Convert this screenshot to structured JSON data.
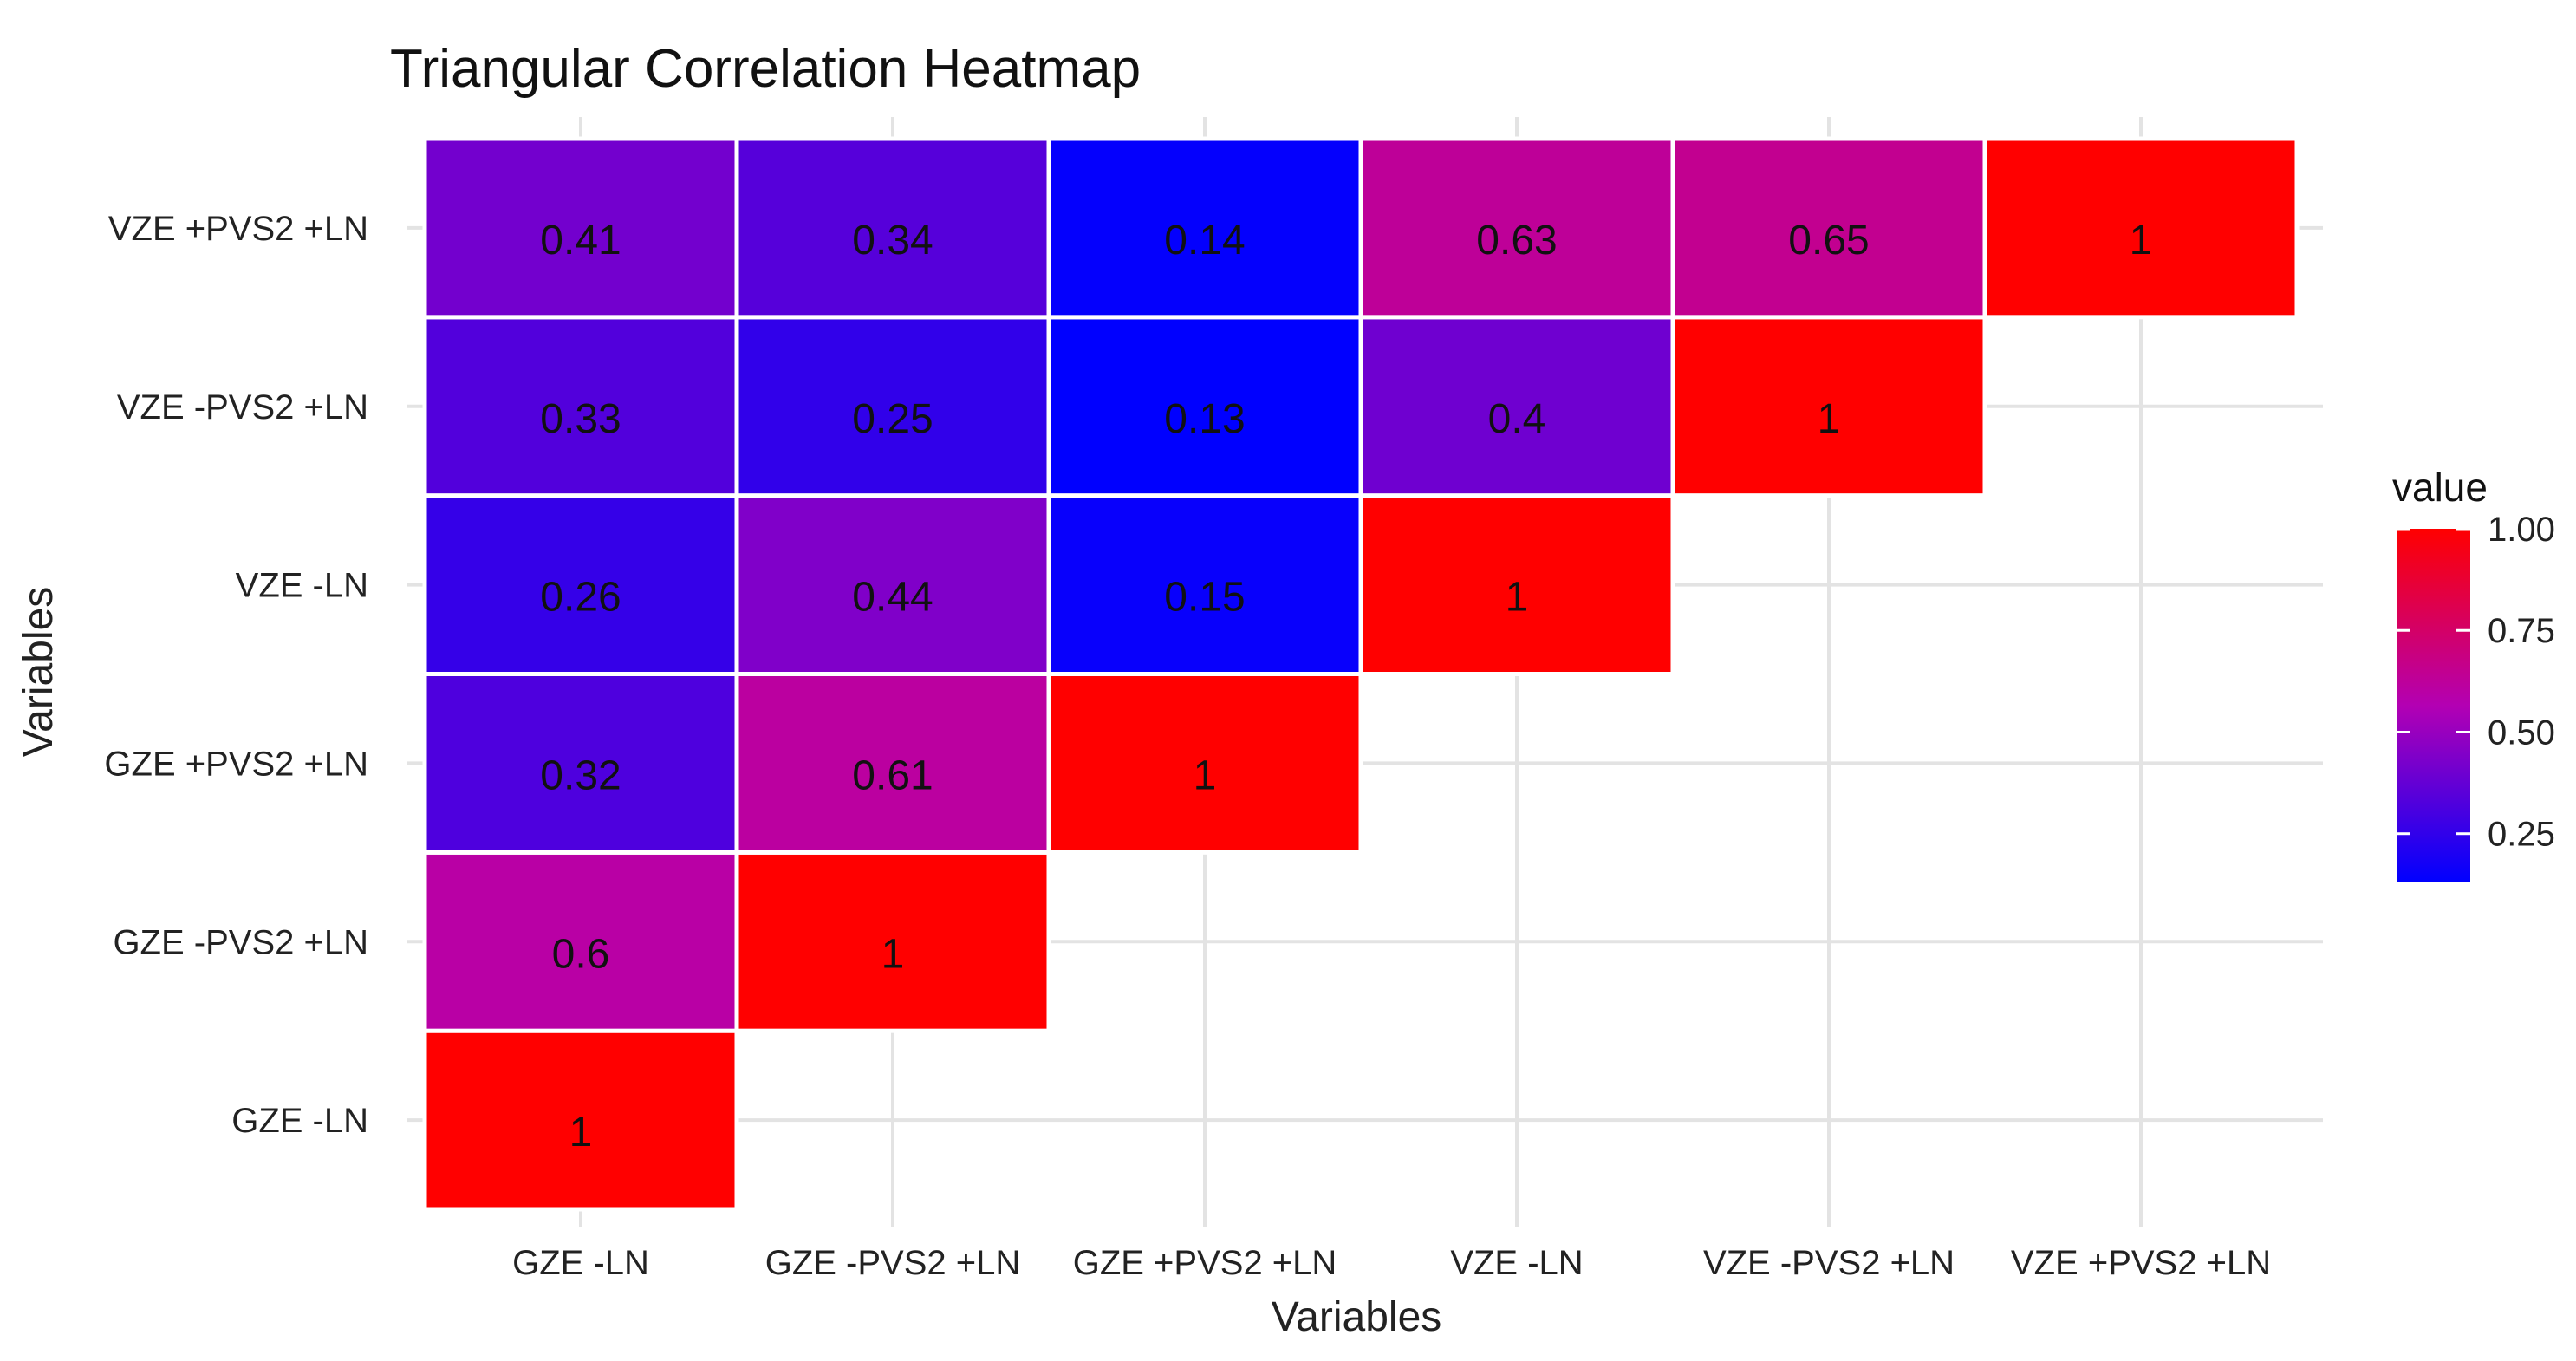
{
  "chart_data": {
    "type": "heatmap",
    "title": "Triangular Correlation Heatmap",
    "xlabel": "Variables",
    "ylabel": "Variables",
    "categories": [
      "GZE -LN",
      "GZE -PVS2 +LN",
      "GZE +PVS2 +LN",
      "VZE -LN",
      "VZE -PVS2 +LN",
      "VZE +PVS2 +LN"
    ],
    "cells": [
      {
        "x": "GZE -LN",
        "y": "GZE -LN",
        "value": 1,
        "label": "1"
      },
      {
        "x": "GZE -LN",
        "y": "GZE -PVS2 +LN",
        "value": 0.6,
        "label": "0.6"
      },
      {
        "x": "GZE -LN",
        "y": "GZE +PVS2 +LN",
        "value": 0.32,
        "label": "0.32"
      },
      {
        "x": "GZE -LN",
        "y": "VZE -LN",
        "value": 0.26,
        "label": "0.26"
      },
      {
        "x": "GZE -LN",
        "y": "VZE -PVS2 +LN",
        "value": 0.33,
        "label": "0.33"
      },
      {
        "x": "GZE -LN",
        "y": "VZE +PVS2 +LN",
        "value": 0.41,
        "label": "0.41"
      },
      {
        "x": "GZE -PVS2 +LN",
        "y": "GZE -PVS2 +LN",
        "value": 1,
        "label": "1"
      },
      {
        "x": "GZE -PVS2 +LN",
        "y": "GZE +PVS2 +LN",
        "value": 0.61,
        "label": "0.61"
      },
      {
        "x": "GZE -PVS2 +LN",
        "y": "VZE -LN",
        "value": 0.44,
        "label": "0.44"
      },
      {
        "x": "GZE -PVS2 +LN",
        "y": "VZE -PVS2 +LN",
        "value": 0.25,
        "label": "0.25"
      },
      {
        "x": "GZE -PVS2 +LN",
        "y": "VZE +PVS2 +LN",
        "value": 0.34,
        "label": "0.34"
      },
      {
        "x": "GZE +PVS2 +LN",
        "y": "GZE +PVS2 +LN",
        "value": 1,
        "label": "1"
      },
      {
        "x": "GZE +PVS2 +LN",
        "y": "VZE -LN",
        "value": 0.15,
        "label": "0.15"
      },
      {
        "x": "GZE +PVS2 +LN",
        "y": "VZE -PVS2 +LN",
        "value": 0.13,
        "label": "0.13"
      },
      {
        "x": "GZE +PVS2 +LN",
        "y": "VZE +PVS2 +LN",
        "value": 0.14,
        "label": "0.14"
      },
      {
        "x": "VZE -LN",
        "y": "VZE -LN",
        "value": 1,
        "label": "1"
      },
      {
        "x": "VZE -LN",
        "y": "VZE -PVS2 +LN",
        "value": 0.4,
        "label": "0.4"
      },
      {
        "x": "VZE -LN",
        "y": "VZE +PVS2 +LN",
        "value": 0.63,
        "label": "0.63"
      },
      {
        "x": "VZE -PVS2 +LN",
        "y": "VZE -PVS2 +LN",
        "value": 1,
        "label": "1"
      },
      {
        "x": "VZE -PVS2 +LN",
        "y": "VZE +PVS2 +LN",
        "value": 0.65,
        "label": "0.65"
      },
      {
        "x": "VZE +PVS2 +LN",
        "y": "VZE +PVS2 +LN",
        "value": 1,
        "label": "1"
      }
    ],
    "legend": {
      "title": "value",
      "ticks": [
        {
          "value": 1.0,
          "label": "1.00"
        },
        {
          "value": 0.75,
          "label": "0.75"
        },
        {
          "value": 0.5,
          "label": "0.50"
        },
        {
          "value": 0.25,
          "label": "0.25"
        }
      ],
      "range": [
        0.13,
        1.0
      ],
      "position": "right"
    },
    "color_scale": {
      "low": "#0000FF",
      "mid": "#B300B3",
      "high": "#FF0000",
      "mid_value": 0.565
    },
    "grid": true
  }
}
